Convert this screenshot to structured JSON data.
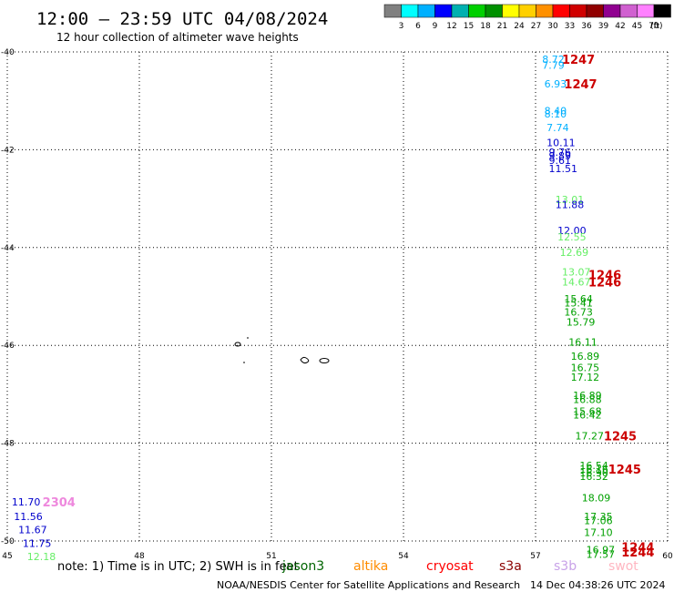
{
  "header": {
    "title": "12:00 – 23:59 UTC 04/08/2024",
    "subtitle": "12 hour collection of altimeter wave heights"
  },
  "colorbar": {
    "colors": [
      "#808080",
      "#00ffff",
      "#00b0ff",
      "#0000ff",
      "#00b0b0",
      "#00d000",
      "#009000",
      "#ffff00",
      "#ffd000",
      "#ff9000",
      "#ff0000",
      "#d00000",
      "#900000",
      "#900090",
      "#d060d0",
      "#ff80ff",
      "#000000"
    ],
    "ticks": [
      "3",
      "6",
      "9",
      "12",
      "15",
      "18",
      "21",
      "24",
      "27",
      "30",
      "33",
      "36",
      "39",
      "42",
      "45",
      "70"
    ],
    "unit": "(ft)"
  },
  "footer": {
    "note_prefix": "note: 1) Time is in UTC; 2) SWH is in feet",
    "satellites": [
      {
        "name": "jason3",
        "color": "#006400"
      },
      {
        "name": "altika",
        "color": "#ff8c00"
      },
      {
        "name": "cryosat",
        "color": "#ff0000"
      },
      {
        "name": "s3a",
        "color": "#8b0000"
      },
      {
        "name": "s3b",
        "color": "#c8a2e8"
      },
      {
        "name": "swot",
        "color": "#ffb6c1"
      }
    ],
    "credit": "NOAA/NESDIS Center for Satellite Applications and Research",
    "timestamp": "14 Dec 04:38:26 UTC 2024"
  },
  "chart_data": {
    "type": "scatter",
    "xlim": [
      45,
      60
    ],
    "ylim": [
      -50,
      -40
    ],
    "x_ticks": [
      "45",
      "48",
      "51",
      "54",
      "57",
      "60"
    ],
    "y_ticks": [
      "-40",
      "-42",
      "-44",
      "-46",
      "-48",
      "-50"
    ],
    "grid": true,
    "points": [
      {
        "x": 57.15,
        "y": -40.15,
        "label": "8.72",
        "color": "#00b0ff"
      },
      {
        "x": 57.15,
        "y": -40.27,
        "label": "7.79",
        "color": "#00b0ff"
      },
      {
        "x": 57.2,
        "y": -40.65,
        "label": "6.93",
        "color": "#00b0ff"
      },
      {
        "x": 57.2,
        "y": -41.2,
        "label": "8.40",
        "color": "#00b0ff"
      },
      {
        "x": 57.2,
        "y": -41.27,
        "label": "8.10",
        "color": "#00b0ff"
      },
      {
        "x": 57.25,
        "y": -41.55,
        "label": "7.74",
        "color": "#00b0ff"
      },
      {
        "x": 57.25,
        "y": -41.85,
        "label": "10.11",
        "color": "#0000cc"
      },
      {
        "x": 57.3,
        "y": -42.05,
        "label": "9.76",
        "color": "#0000cc"
      },
      {
        "x": 57.3,
        "y": -42.12,
        "label": "9.89",
        "color": "#0000cc"
      },
      {
        "x": 57.3,
        "y": -42.22,
        "label": "9.61",
        "color": "#0000cc"
      },
      {
        "x": 57.3,
        "y": -42.38,
        "label": "11.51",
        "color": "#0000cc"
      },
      {
        "x": 57.45,
        "y": -43.02,
        "label": "13.01",
        "color": "#66ee66"
      },
      {
        "x": 57.45,
        "y": -43.12,
        "label": "11.88",
        "color": "#0000cc"
      },
      {
        "x": 57.5,
        "y": -43.65,
        "label": "12.00",
        "color": "#0000cc"
      },
      {
        "x": 57.5,
        "y": -43.78,
        "label": "12.55",
        "color": "#66ee66"
      },
      {
        "x": 57.55,
        "y": -44.1,
        "label": "12.69",
        "color": "#66ee66"
      },
      {
        "x": 57.6,
        "y": -44.5,
        "label": "13.07",
        "color": "#66ee66"
      },
      {
        "x": 57.6,
        "y": -44.7,
        "label": "14.67",
        "color": "#66ee66"
      },
      {
        "x": 57.65,
        "y": -45.05,
        "label": "15.64",
        "color": "#00a000"
      },
      {
        "x": 57.65,
        "y": -45.13,
        "label": "15.41",
        "color": "#00a000"
      },
      {
        "x": 57.65,
        "y": -45.32,
        "label": "16.73",
        "color": "#00a000"
      },
      {
        "x": 57.7,
        "y": -45.52,
        "label": "15.79",
        "color": "#00a000"
      },
      {
        "x": 57.75,
        "y": -45.93,
        "label": "16.11",
        "color": "#00a000"
      },
      {
        "x": 57.8,
        "y": -46.22,
        "label": "16.89",
        "color": "#00a000"
      },
      {
        "x": 57.8,
        "y": -46.45,
        "label": "16.75",
        "color": "#00a000"
      },
      {
        "x": 57.8,
        "y": -46.65,
        "label": "17.12",
        "color": "#00a000"
      },
      {
        "x": 57.85,
        "y": -47.02,
        "label": "16.89",
        "color": "#00a000"
      },
      {
        "x": 57.85,
        "y": -47.1,
        "label": "16.88",
        "color": "#00a000"
      },
      {
        "x": 57.85,
        "y": -47.35,
        "label": "15.68",
        "color": "#00a000"
      },
      {
        "x": 57.85,
        "y": -47.42,
        "label": "16.42",
        "color": "#00a000"
      },
      {
        "x": 57.9,
        "y": -47.85,
        "label": "17.27",
        "color": "#00a000"
      },
      {
        "x": 58.0,
        "y": -48.45,
        "label": "16.54",
        "color": "#00a000"
      },
      {
        "x": 58.0,
        "y": -48.53,
        "label": "16.16",
        "color": "#00a000"
      },
      {
        "x": 58.0,
        "y": -48.6,
        "label": "16.90",
        "color": "#00a000"
      },
      {
        "x": 58.0,
        "y": -48.68,
        "label": "16.32",
        "color": "#00a000"
      },
      {
        "x": 58.05,
        "y": -49.12,
        "label": "18.09",
        "color": "#00a000"
      },
      {
        "x": 58.1,
        "y": -49.5,
        "label": "17.35",
        "color": "#00a000"
      },
      {
        "x": 58.1,
        "y": -49.58,
        "label": "17.06",
        "color": "#00a000"
      },
      {
        "x": 58.1,
        "y": -49.82,
        "label": "17.10",
        "color": "#00a000"
      },
      {
        "x": 58.15,
        "y": -50.18,
        "label": "16.97",
        "color": "#00a000"
      },
      {
        "x": 58.15,
        "y": -50.27,
        "label": "17.57",
        "color": "#00a000"
      },
      {
        "x": 45.1,
        "y": -49.2,
        "label": "11.70",
        "color": "#0000cc"
      },
      {
        "x": 45.15,
        "y": -49.5,
        "label": "11.56",
        "color": "#0000cc"
      },
      {
        "x": 45.25,
        "y": -49.77,
        "label": "11.67",
        "color": "#0000cc"
      },
      {
        "x": 45.35,
        "y": -50.05,
        "label": "11.75",
        "color": "#0000cc"
      },
      {
        "x": 45.45,
        "y": -50.32,
        "label": "12.18",
        "color": "#66ee66"
      }
    ],
    "pass_labels": [
      {
        "x": 57.6,
        "y": -40.15,
        "label": "1247",
        "color": "#cc0000"
      },
      {
        "x": 57.65,
        "y": -40.65,
        "label": "1247",
        "color": "#cc0000"
      },
      {
        "x": 58.2,
        "y": -44.55,
        "label": "1246",
        "color": "#cc0000"
      },
      {
        "x": 58.2,
        "y": -44.7,
        "label": "1246",
        "color": "#cc0000"
      },
      {
        "x": 58.55,
        "y": -47.85,
        "label": "1245",
        "color": "#cc0000"
      },
      {
        "x": 58.65,
        "y": -48.53,
        "label": "1245",
        "color": "#cc0000"
      },
      {
        "x": 58.95,
        "y": -50.12,
        "label": "1244",
        "color": "#cc0000"
      },
      {
        "x": 58.95,
        "y": -50.22,
        "label": "1244",
        "color": "#cc0000"
      },
      {
        "x": 45.8,
        "y": -49.2,
        "label": "2304",
        "color": "#ee88dd"
      }
    ]
  }
}
